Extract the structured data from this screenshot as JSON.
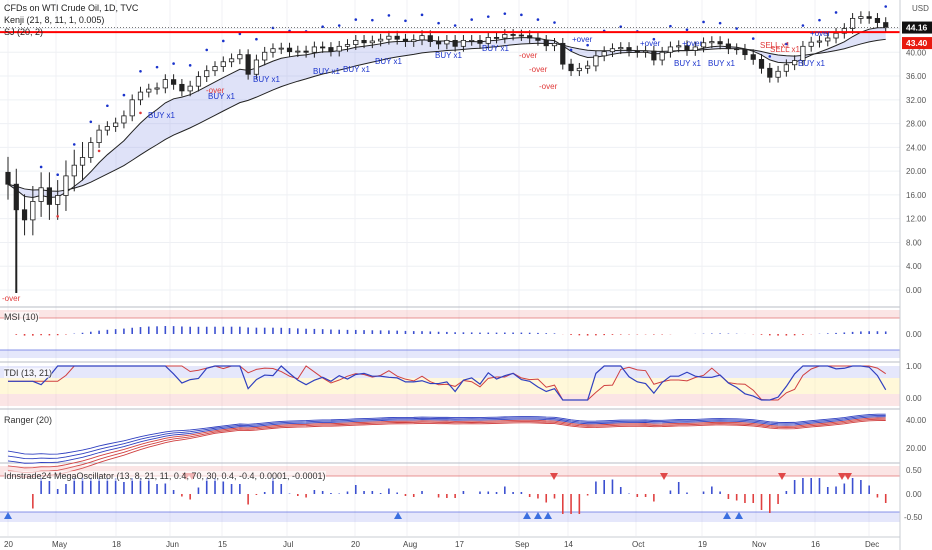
{
  "header": {
    "title": "CFDs on WTI Crude Oil, 1D, TVC",
    "indicator1": "Kenji (21, 8, 11, 1, 0.005)",
    "indicator2": "SJ (20, 2)",
    "currency": "USD"
  },
  "price_badges": {
    "last": "44.16",
    "level": "43.40"
  },
  "colors": {
    "level_line": "#ff0000",
    "buy": "#1a33cc",
    "sell": "#e03a3a",
    "badge_last": "#111111",
    "badge_level": "#e8190f"
  },
  "main_axis": {
    "ticks": [
      "44.00",
      "40.00",
      "36.00",
      "32.00",
      "28.00",
      "24.00",
      "20.00",
      "16.00",
      "12.00",
      "8.00",
      "4.00",
      "0.00"
    ]
  },
  "x_axis": {
    "ticks": [
      "20",
      "May",
      "18",
      "Jun",
      "15",
      "Jul",
      "20",
      "Aug",
      "17",
      "Sep",
      "14",
      "Oct",
      "19",
      "Nov",
      "16",
      "Dec"
    ]
  },
  "annotations": {
    "buy": "BUY x1",
    "sell": "SELL x1",
    "oversold_up": "+over",
    "oversold_down": "-over"
  },
  "panes": [
    {
      "label": "MSI (10)",
      "ticks": [
        "0.00"
      ]
    },
    {
      "label": "TDI (13, 21)",
      "ticks": [
        "1.00",
        "0.00"
      ]
    },
    {
      "label": "Ranger (20)",
      "ticks": [
        "40.00",
        "20.00"
      ]
    },
    {
      "label": "Idnstrade24 MegaOscillator (13, 8, 21, 11, 0.4, 70, 30, 0.4, -0.4, 0.0001, -0.0001)",
      "ticks": [
        "0.50",
        "0.00",
        "-0.50"
      ]
    }
  ],
  "chart_data": {
    "type": "candlestick",
    "symbol": "CFDs on WTI Crude Oil",
    "interval": "1D",
    "y_range": [
      -2,
      48
    ],
    "close_series_approx": [
      17.8,
      13.5,
      11.8,
      14.9,
      17.2,
      14.4,
      15.9,
      19.2,
      21.0,
      22.3,
      24.8,
      26.9,
      27.5,
      28.1,
      29.3,
      32.0,
      33.3,
      33.8,
      34.0,
      35.4,
      34.6,
      33.5,
      34.3,
      35.9,
      36.9,
      37.6,
      38.4,
      38.9,
      39.6,
      36.3,
      38.7,
      40.0,
      40.6,
      40.7,
      40.1,
      40.2,
      40.0,
      40.9,
      40.8,
      40.2,
      41.0,
      41.3,
      42.0,
      41.6,
      41.9,
      42.2,
      42.7,
      42.2,
      41.8,
      42.1,
      42.8,
      41.8,
      41.4,
      42.0,
      41.0,
      42.0,
      42.0,
      41.5,
      42.5,
      42.4,
      43.0,
      42.9,
      42.8,
      42.4,
      42.0,
      41.1,
      41.5,
      38.0,
      36.9,
      37.3,
      37.7,
      39.4,
      40.1,
      40.6,
      40.8,
      40.2,
      40.0,
      40.2,
      38.7,
      40.0,
      40.9,
      41.1,
      40.3,
      40.9,
      41.6,
      41.8,
      41.4,
      40.6,
      40.5,
      39.6,
      38.8,
      37.3,
      35.8,
      36.8,
      37.9,
      38.6,
      41.0,
      41.7,
      41.9,
      42.4,
      43.2,
      44.0,
      45.7,
      46.0,
      45.7,
      45.0,
      44.2
    ]
  }
}
